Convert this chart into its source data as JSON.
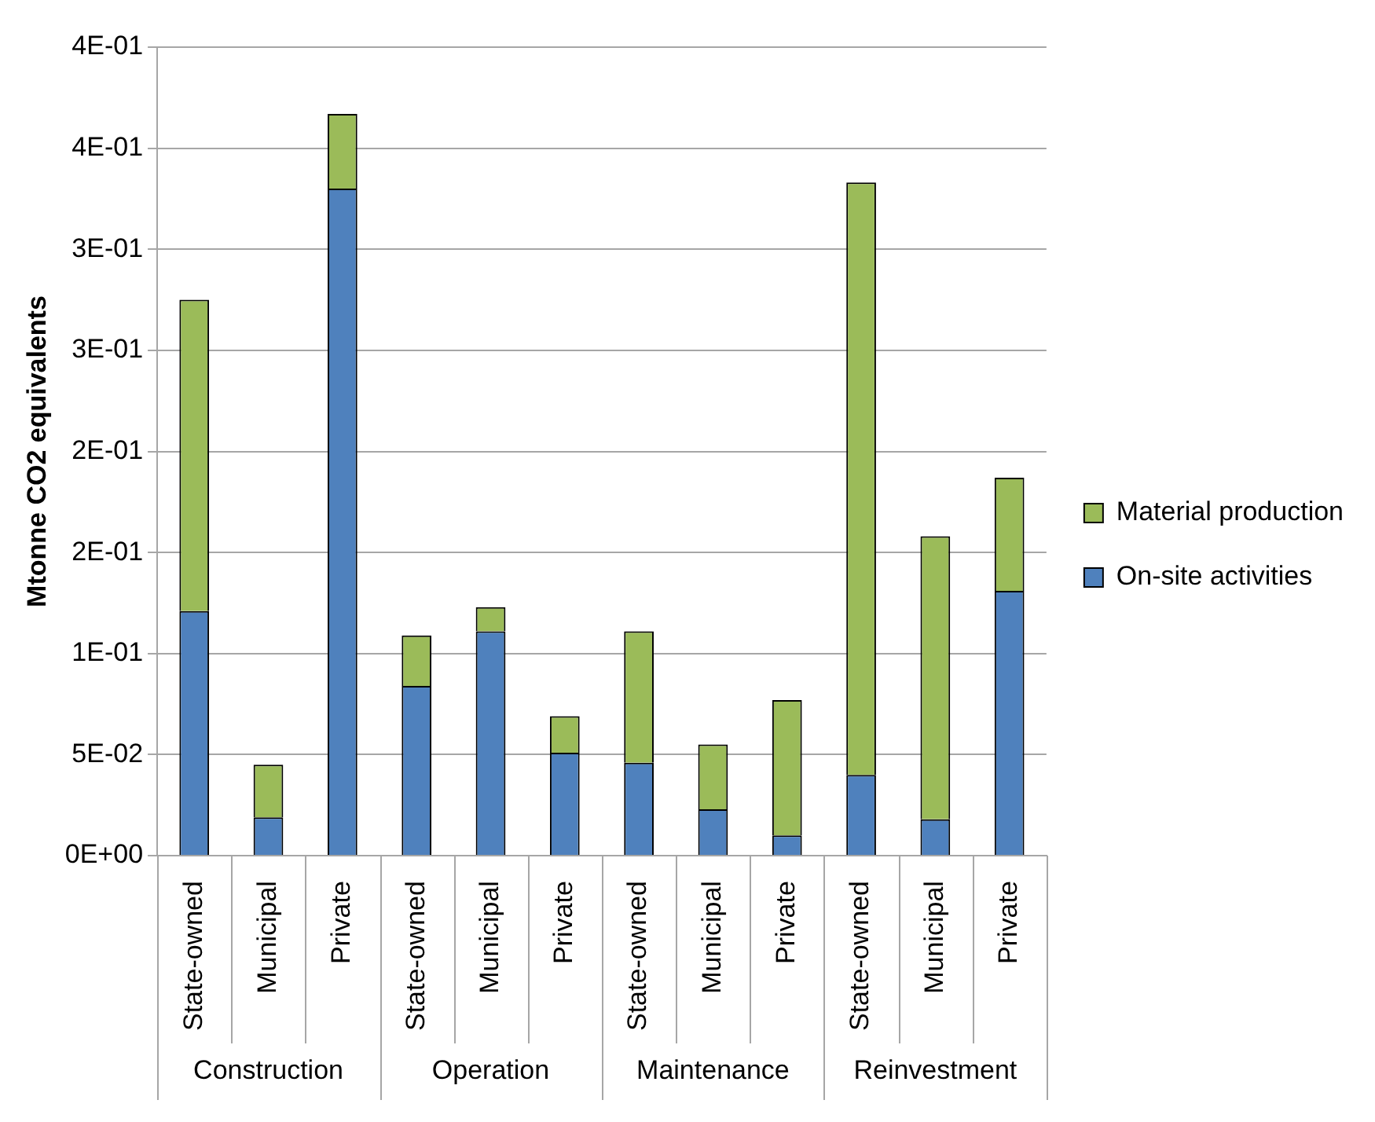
{
  "chart_data": {
    "type": "bar",
    "stacked": true,
    "ylabel": "Mtonne CO2 equivalents",
    "categories": [
      "State-owned",
      "Municipal",
      "Private",
      "State-owned",
      "Municipal",
      "Private",
      "State-owned",
      "Municipal",
      "Private",
      "State-owned",
      "Municipal",
      "Private"
    ],
    "series": [
      {
        "name": "On-site activities",
        "color": "#4f81bd",
        "values": [
          0.121,
          0.019,
          0.33,
          0.084,
          0.111,
          0.051,
          0.046,
          0.023,
          0.01,
          0.04,
          0.018,
          0.131
        ]
      },
      {
        "name": "Material production",
        "color": "#9bbb59",
        "values": [
          0.154,
          0.026,
          0.037,
          0.025,
          0.012,
          0.018,
          0.065,
          0.032,
          0.067,
          0.293,
          0.14,
          0.056
        ]
      }
    ],
    "ylim": [
      0,
      0.4
    ],
    "yticks": [
      {
        "value": 0,
        "label": "0E+00"
      },
      {
        "value": 0.05,
        "label": "5E-02"
      },
      {
        "value": 0.1,
        "label": "1E-01"
      },
      {
        "value": 0.15,
        "label": "2E-01"
      },
      {
        "value": 0.2,
        "label": "2E-01"
      },
      {
        "value": 0.25,
        "label": "3E-01"
      },
      {
        "value": 0.3,
        "label": "3E-01"
      },
      {
        "value": 0.35,
        "label": "4E-01"
      },
      {
        "value": 0.4,
        "label": "4E-01"
      }
    ],
    "annotations": [
      "Construction",
      "Operation",
      "Maintenance",
      "Reinvestment"
    ],
    "grid": "y",
    "legend": "right"
  }
}
